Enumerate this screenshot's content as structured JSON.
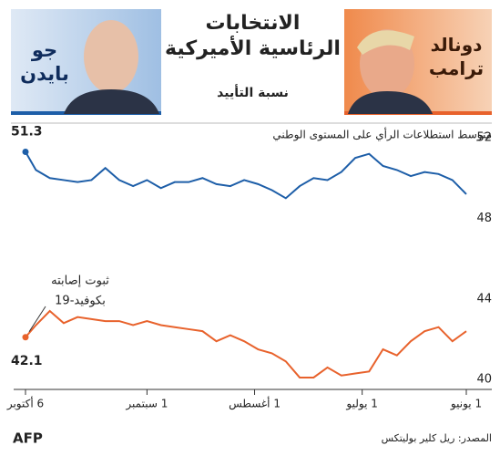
{
  "chart_data": {
    "type": "line",
    "title": "الانتخابات الرئاسية الأميركية",
    "subtitle": "نسبة التأييد",
    "chart_title": "متوسط استطلاعات الرأي على المستوى الوطني",
    "x": [
      0,
      4,
      8,
      12,
      16,
      20,
      24,
      28,
      32,
      36,
      40,
      44,
      48,
      52,
      56,
      60,
      64,
      68,
      72,
      76,
      80,
      84,
      88,
      92,
      96,
      100,
      104,
      108,
      112,
      116,
      120,
      124,
      127
    ],
    "xlim": [
      0,
      127
    ],
    "xticks": [
      {
        "value": 0,
        "label": "1 يونيو"
      },
      {
        "value": 30,
        "label": "1 يوليو"
      },
      {
        "value": 61,
        "label": "1 أغسطس"
      },
      {
        "value": 92,
        "label": "1 سبتمبر"
      },
      {
        "value": 127,
        "label": "6 أكتوبر"
      }
    ],
    "x_reversed": true,
    "ylim": [
      39.6,
      52.5
    ],
    "yticks": [
      40,
      44,
      48,
      52
    ],
    "series": [
      {
        "name": "جو بايدن",
        "color": "#1d5ea8",
        "values": [
          49.2,
          49.9,
          50.2,
          50.3,
          50.1,
          50.4,
          50.6,
          51.2,
          51.0,
          50.3,
          49.9,
          50.0,
          49.6,
          49.0,
          49.4,
          49.7,
          49.9,
          49.6,
          49.7,
          50.0,
          49.8,
          49.8,
          49.5,
          49.9,
          49.6,
          49.9,
          50.5,
          49.9,
          49.8,
          49.9,
          50.0,
          50.4,
          51.3
        ]
      },
      {
        "name": "دونالد ترامب",
        "color": "#e8622c",
        "values": [
          42.4,
          41.9,
          42.6,
          42.4,
          41.9,
          41.2,
          41.5,
          40.4,
          40.3,
          40.2,
          40.6,
          40.1,
          40.1,
          40.9,
          41.3,
          41.5,
          41.9,
          42.2,
          41.9,
          42.4,
          42.5,
          42.6,
          42.7,
          42.9,
          42.7,
          42.9,
          42.9,
          43.0,
          43.1,
          42.8,
          43.4,
          42.7,
          42.1
        ]
      }
    ],
    "annotation": [
      "ثبوت إصابته",
      "بكوفيد-19"
    ],
    "source": "المصدر: ريل كلير بوليتكس",
    "logo": "AFP"
  }
}
